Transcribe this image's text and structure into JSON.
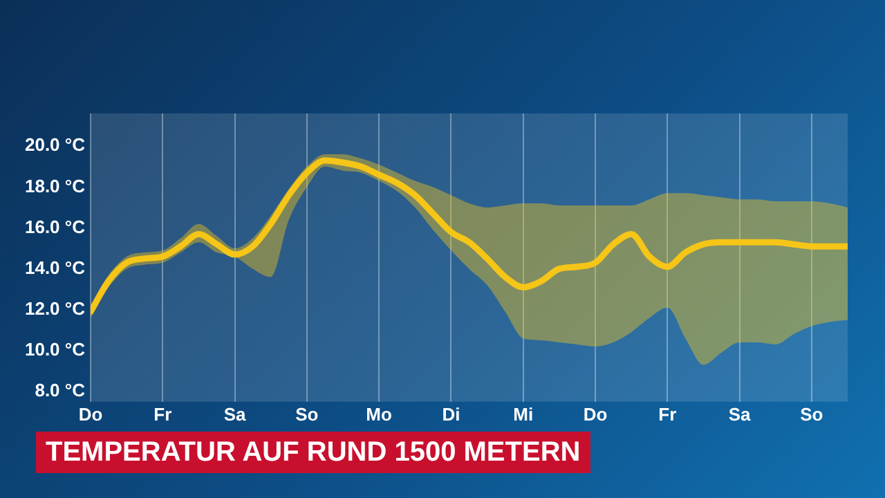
{
  "chart_data": {
    "type": "line",
    "title": "TEMPERATUR AUF RUND 1500 METERN",
    "categories": [
      "Do",
      null,
      null,
      null,
      "Fr",
      null,
      null,
      null,
      "Sa",
      null,
      null,
      null,
      "So",
      null,
      null,
      null,
      "Mo",
      null,
      null,
      null,
      "Di",
      null,
      null,
      null,
      "Mi",
      null,
      null,
      null,
      "Do",
      null,
      null,
      null,
      "Fr",
      null,
      null,
      null,
      "Sa",
      null,
      null,
      null,
      "So",
      null,
      null
    ],
    "ylim": [
      7.5,
      21.6
    ],
    "yticks": [
      {
        "value": 8,
        "label": "8.0 °C"
      },
      {
        "value": 10,
        "label": "10.0 °C"
      },
      {
        "value": 12,
        "label": "12.0 °C"
      },
      {
        "value": 14,
        "label": "14.0 °C"
      },
      {
        "value": 16,
        "label": "16.0 °C"
      },
      {
        "value": 18,
        "label": "18.0 °C"
      },
      {
        "value": 20,
        "label": "20.0 °C"
      }
    ],
    "series": [
      {
        "color": "#f5c518",
        "values": [
          11.9,
          13.4,
          14.3,
          14.5,
          14.6,
          15.1,
          15.7,
          15.2,
          14.7,
          15.1,
          16.2,
          17.6,
          18.7,
          19.3,
          19.2,
          19.0,
          18.6,
          18.2,
          17.6,
          16.7,
          15.8,
          15.3,
          14.5,
          13.6,
          13.1,
          13.4,
          14.0,
          14.1,
          14.3,
          15.2,
          15.7,
          14.6,
          14.1,
          14.8,
          15.2,
          15.3,
          15.3,
          15.3,
          15.3,
          15.2,
          15.1,
          15.1,
          15.1
        ],
        "upper": [
          12.2,
          13.7,
          14.6,
          14.8,
          14.9,
          15.5,
          16.2,
          15.6,
          15.0,
          15.5,
          16.6,
          17.9,
          19.0,
          19.6,
          19.6,
          19.4,
          19.1,
          18.7,
          18.3,
          18.0,
          17.6,
          17.2,
          17.0,
          17.1,
          17.2,
          17.2,
          17.1,
          17.1,
          17.1,
          17.1,
          17.1,
          17.4,
          17.7,
          17.7,
          17.6,
          17.5,
          17.4,
          17.4,
          17.3,
          17.3,
          17.3,
          17.2,
          17.0
        ],
        "lower": [
          11.6,
          13.1,
          14.0,
          14.2,
          14.3,
          14.8,
          15.3,
          14.8,
          14.6,
          14.0,
          13.6,
          16.4,
          18.0,
          19.0,
          18.8,
          18.7,
          18.3,
          17.8,
          17.0,
          15.9,
          14.9,
          14.0,
          13.2,
          11.9,
          10.6,
          10.5,
          10.4,
          10.3,
          10.2,
          10.4,
          10.9,
          11.6,
          12.1,
          10.6,
          9.3,
          9.9,
          10.4,
          10.4,
          10.3,
          10.8,
          11.2,
          11.4,
          11.5
        ]
      }
    ],
    "grid": "x",
    "legend": false,
    "marker": "none",
    "line_style": "solid"
  }
}
